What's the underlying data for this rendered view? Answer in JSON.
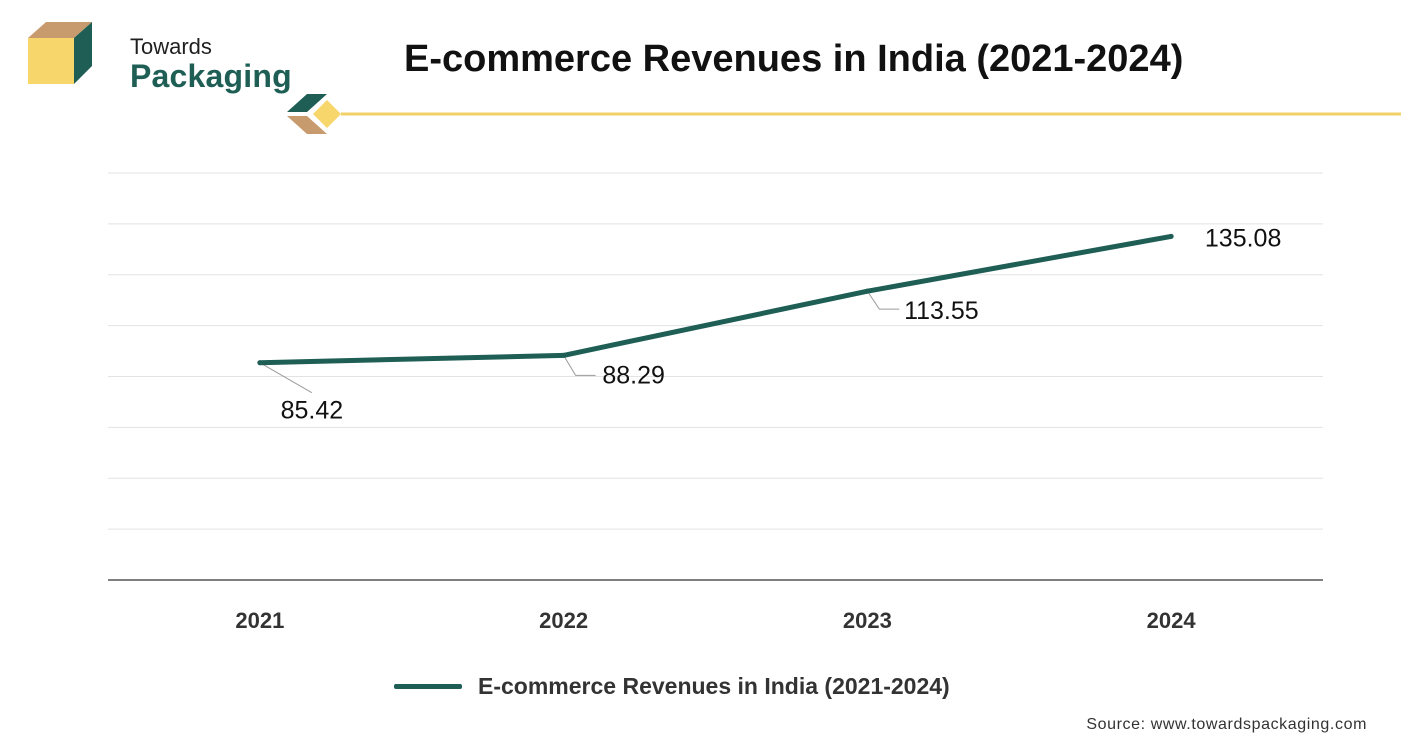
{
  "brand": {
    "line1": "Towards",
    "line2": "Packaging",
    "icon": "box-logo-icon"
  },
  "title": "E-commerce Revenues in India (2021-2024)",
  "source": "Source: www.towardspackaging.com",
  "colors": {
    "line": "#1e5e55",
    "accent_yellow": "#f2d168",
    "accent_tan": "#c69a6d",
    "grid": "#e3e3e3"
  },
  "chart_data": {
    "type": "line",
    "title": "E-commerce Revenues in India (2021-2024)",
    "categories": [
      "2021",
      "2022",
      "2023",
      "2024"
    ],
    "series": [
      {
        "name": "E-commerce Revenues in India (2021-2024)",
        "values": [
          85.42,
          88.29,
          113.55,
          135.08
        ]
      }
    ],
    "data_labels": [
      "85.42",
      "88.29",
      "113.55",
      "135.08"
    ],
    "ylim": [
      0,
      160
    ],
    "grid": true,
    "y_axis_labels_shown": false,
    "legend_position": "bottom"
  },
  "legend": {
    "label": "E-commerce Revenues in India (2021-2024)"
  }
}
